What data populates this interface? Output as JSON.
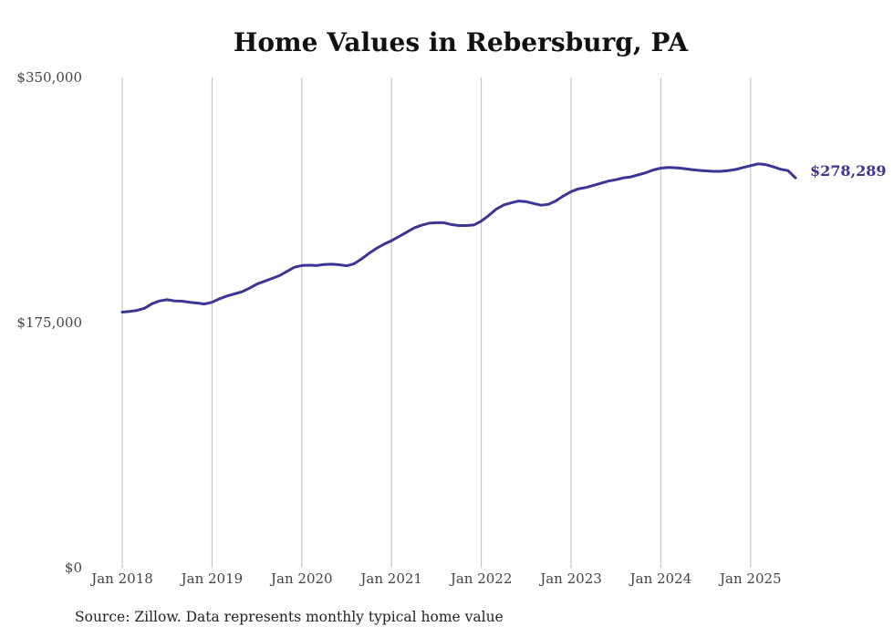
{
  "chart_data": {
    "type": "line",
    "title": "Home Values in Rebersburg, PA",
    "xlabel": "",
    "ylabel": "",
    "x_tick_labels": [
      "Jan 2018",
      "Jan 2019",
      "Jan 2020",
      "Jan 2021",
      "Jan 2022",
      "Jan 2023",
      "Jan 2024",
      "Jan 2025"
    ],
    "y_tick_labels": [
      "$350,000",
      "$175,000",
      "$0"
    ],
    "y_ticks": [
      350000,
      175000,
      0
    ],
    "ylim": [
      0,
      350000
    ],
    "x_range": [
      "2018-01",
      "2025-07"
    ],
    "grid": "vertical",
    "line_color": "#3b3596",
    "end_label": "$278,289",
    "series": [
      {
        "values": [
          {
            "x": "2018-01",
            "y": 182500
          },
          {
            "x": "2018-02",
            "y": 183000
          },
          {
            "x": "2018-03",
            "y": 183700
          },
          {
            "x": "2018-04",
            "y": 185300
          },
          {
            "x": "2018-05",
            "y": 188500
          },
          {
            "x": "2018-06",
            "y": 190500
          },
          {
            "x": "2018-07",
            "y": 191300
          },
          {
            "x": "2018-08",
            "y": 190500
          },
          {
            "x": "2018-09",
            "y": 190300
          },
          {
            "x": "2018-10",
            "y": 189500
          },
          {
            "x": "2018-11",
            "y": 189000
          },
          {
            "x": "2018-12",
            "y": 188300
          },
          {
            "x": "2019-01",
            "y": 189500
          },
          {
            "x": "2019-02",
            "y": 192000
          },
          {
            "x": "2019-03",
            "y": 194000
          },
          {
            "x": "2019-04",
            "y": 195500
          },
          {
            "x": "2019-05",
            "y": 197000
          },
          {
            "x": "2019-06",
            "y": 199500
          },
          {
            "x": "2019-07",
            "y": 202500
          },
          {
            "x": "2019-08",
            "y": 204500
          },
          {
            "x": "2019-09",
            "y": 206500
          },
          {
            "x": "2019-10",
            "y": 208500
          },
          {
            "x": "2019-11",
            "y": 211500
          },
          {
            "x": "2019-12",
            "y": 214500
          },
          {
            "x": "2020-01",
            "y": 215700
          },
          {
            "x": "2020-02",
            "y": 216000
          },
          {
            "x": "2020-03",
            "y": 215700
          },
          {
            "x": "2020-04",
            "y": 216500
          },
          {
            "x": "2020-05",
            "y": 216700
          },
          {
            "x": "2020-06",
            "y": 216300
          },
          {
            "x": "2020-07",
            "y": 215500
          },
          {
            "x": "2020-08",
            "y": 217000
          },
          {
            "x": "2020-09",
            "y": 220500
          },
          {
            "x": "2020-10",
            "y": 224500
          },
          {
            "x": "2020-11",
            "y": 228000
          },
          {
            "x": "2020-12",
            "y": 231000
          },
          {
            "x": "2021-01",
            "y": 233500
          },
          {
            "x": "2021-02",
            "y": 236500
          },
          {
            "x": "2021-03",
            "y": 239500
          },
          {
            "x": "2021-04",
            "y": 242500
          },
          {
            "x": "2021-05",
            "y": 244500
          },
          {
            "x": "2021-06",
            "y": 246000
          },
          {
            "x": "2021-07",
            "y": 246300
          },
          {
            "x": "2021-08",
            "y": 246300
          },
          {
            "x": "2021-09",
            "y": 245000
          },
          {
            "x": "2021-10",
            "y": 244300
          },
          {
            "x": "2021-11",
            "y": 244300
          },
          {
            "x": "2021-12",
            "y": 244700
          },
          {
            "x": "2022-01",
            "y": 247500
          },
          {
            "x": "2022-02",
            "y": 251500
          },
          {
            "x": "2022-03",
            "y": 256000
          },
          {
            "x": "2022-04",
            "y": 259000
          },
          {
            "x": "2022-05",
            "y": 260500
          },
          {
            "x": "2022-06",
            "y": 261800
          },
          {
            "x": "2022-07",
            "y": 261300
          },
          {
            "x": "2022-08",
            "y": 260000
          },
          {
            "x": "2022-09",
            "y": 258800
          },
          {
            "x": "2022-10",
            "y": 259500
          },
          {
            "x": "2022-11",
            "y": 262000
          },
          {
            "x": "2022-12",
            "y": 265500
          },
          {
            "x": "2023-01",
            "y": 268500
          },
          {
            "x": "2023-02",
            "y": 270500
          },
          {
            "x": "2023-03",
            "y": 271500
          },
          {
            "x": "2023-04",
            "y": 273000
          },
          {
            "x": "2023-05",
            "y": 274500
          },
          {
            "x": "2023-06",
            "y": 276000
          },
          {
            "x": "2023-07",
            "y": 277000
          },
          {
            "x": "2023-08",
            "y": 278300
          },
          {
            "x": "2023-09",
            "y": 279000
          },
          {
            "x": "2023-10",
            "y": 280500
          },
          {
            "x": "2023-11",
            "y": 282000
          },
          {
            "x": "2023-12",
            "y": 284000
          },
          {
            "x": "2024-01",
            "y": 285300
          },
          {
            "x": "2024-02",
            "y": 285700
          },
          {
            "x": "2024-03",
            "y": 285500
          },
          {
            "x": "2024-04",
            "y": 285000
          },
          {
            "x": "2024-05",
            "y": 284300
          },
          {
            "x": "2024-06",
            "y": 283700
          },
          {
            "x": "2024-07",
            "y": 283300
          },
          {
            "x": "2024-08",
            "y": 283000
          },
          {
            "x": "2024-09",
            "y": 283000
          },
          {
            "x": "2024-10",
            "y": 283500
          },
          {
            "x": "2024-11",
            "y": 284300
          },
          {
            "x": "2024-12",
            "y": 285700
          },
          {
            "x": "2025-01",
            "y": 287000
          },
          {
            "x": "2025-02",
            "y": 288300
          },
          {
            "x": "2025-03",
            "y": 287800
          },
          {
            "x": "2025-04",
            "y": 286300
          },
          {
            "x": "2025-05",
            "y": 284500
          },
          {
            "x": "2025-06",
            "y": 283500
          },
          {
            "x": "2025-07",
            "y": 278289
          }
        ]
      }
    ]
  },
  "footer": {
    "source_text": "Source: Zillow. Data represents monthly typical home value"
  }
}
